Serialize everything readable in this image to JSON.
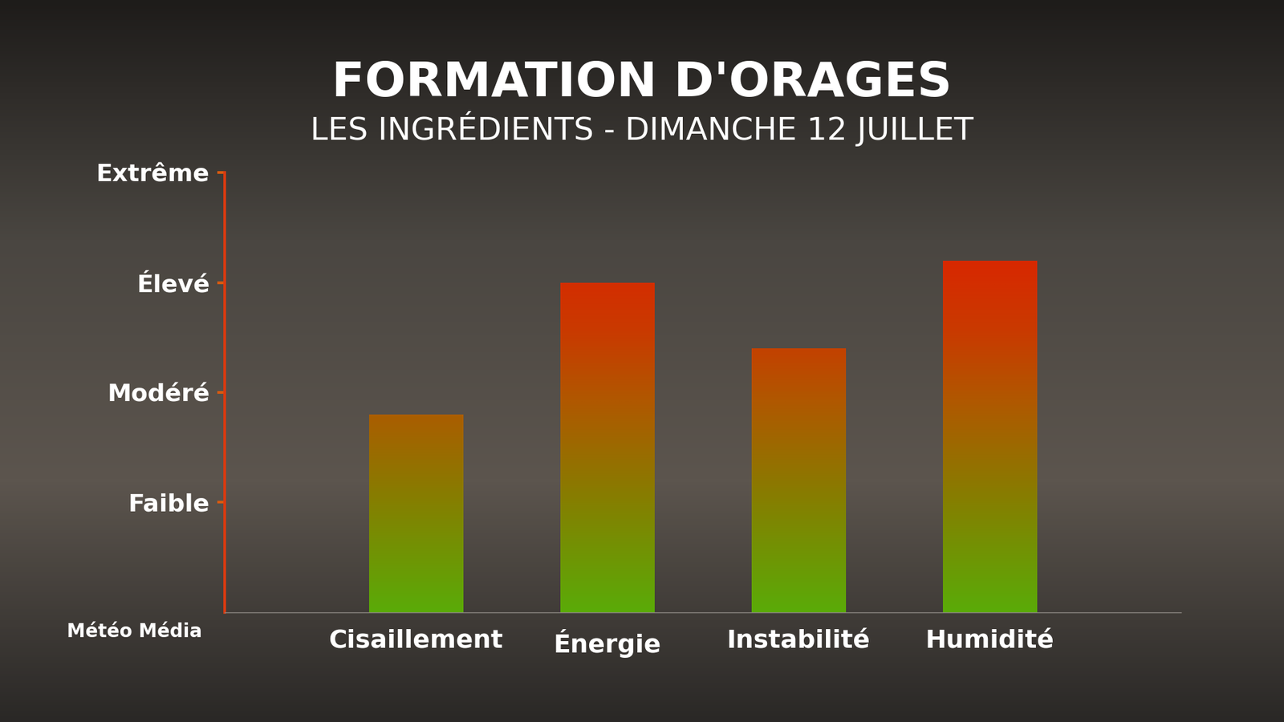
{
  "chart_data": {
    "type": "bar",
    "title": "FORMATION D'ORAGES",
    "subtitle": "LES INGRÉDIENTS - DIMANCHE 12 JUILLET",
    "categories": [
      "Cisaillement",
      "Énergie",
      "Instabilité",
      "Humidité"
    ],
    "values": [
      1.8,
      3.0,
      2.4,
      3.2
    ],
    "ylim": [
      0,
      4
    ],
    "yticks": [
      {
        "value": 1,
        "label": "Faible"
      },
      {
        "value": 2,
        "label": "Modéré"
      },
      {
        "value": 3,
        "label": "Élevé"
      },
      {
        "value": 4,
        "label": "Extrême"
      }
    ],
    "grid": false,
    "annotations": [
      "Météo Média"
    ]
  }
}
